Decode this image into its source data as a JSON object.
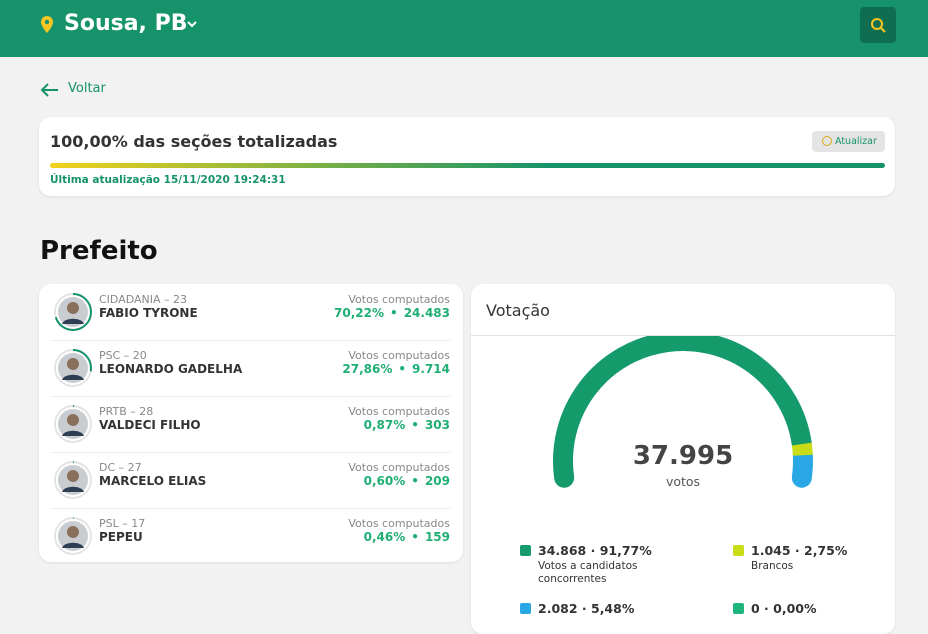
{
  "header": {
    "city": "Sousa, PB"
  },
  "back": "Voltar",
  "status": {
    "title": "100,00% das seções totalizadas",
    "button": "Atualizar",
    "progress": 100,
    "updated": "Última atualização 15/11/2020 19:24:31"
  },
  "section_title": "Prefeito",
  "candidates_panel": {
    "votes_label": "Votos computados",
    "separator": "•",
    "candidates": [
      {
        "party": "CIDADANIA – 23",
        "name": "FABIO TYRONE",
        "share": 70.22,
        "share_label": "70,22%",
        "votes": "24.483"
      },
      {
        "party": "PSC – 20",
        "name": "LEONARDO GADELHA",
        "share": 27.86,
        "share_label": "27,86%",
        "votes": "9.714"
      },
      {
        "party": "PRTB – 28",
        "name": "VALDECI FILHO",
        "share": 0.87,
        "share_label": "0,87%",
        "votes": "303"
      },
      {
        "party": "DC – 27",
        "name": "MARCELO ELIAS",
        "share": 0.6,
        "share_label": "0,60%",
        "votes": "209"
      },
      {
        "party": "PSL – 17",
        "name": "PEPEU",
        "share": 0.46,
        "share_label": "0,46%",
        "votes": "159"
      }
    ]
  },
  "votes_panel": {
    "title": "Votação",
    "total": "37.995",
    "total_label": "votos",
    "legend": [
      {
        "text": "34.868 · 91,77%",
        "share": 91.77,
        "label": "Votos a candidatos concorrentes",
        "color": "#149a6b"
      },
      {
        "text": "1.045 · 2,75%",
        "share": 2.75,
        "label": "Brancos",
        "color": "#c8dc17"
      },
      {
        "text": "2.082 · 5,48%",
        "share": 5.48,
        "color": "#2aa8e6"
      },
      {
        "text": "0 · 0,00%",
        "share": 0,
        "color": "#1fb67d"
      }
    ]
  }
}
